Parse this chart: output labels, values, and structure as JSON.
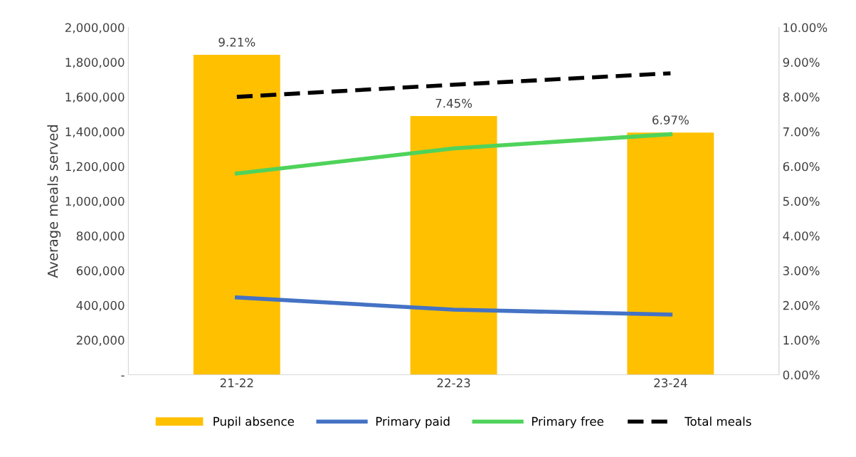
{
  "chart_data": {
    "type": "bar",
    "ylabel": "Average meals served",
    "categories": [
      "21-22",
      "22-23",
      "23-24"
    ],
    "ylim": [
      0,
      2000000
    ],
    "yticks": [
      {
        "value": 0,
        "label": "-"
      },
      {
        "value": 200000,
        "label": "200,000"
      },
      {
        "value": 400000,
        "label": "400,000"
      },
      {
        "value": 600000,
        "label": "600,000"
      },
      {
        "value": 800000,
        "label": "800,000"
      },
      {
        "value": 1000000,
        "label": "1,000,000"
      },
      {
        "value": 1200000,
        "label": "1,200,000"
      },
      {
        "value": 1400000,
        "label": "1,400,000"
      },
      {
        "value": 1600000,
        "label": "1,600,000"
      },
      {
        "value": 1800000,
        "label": "1,800,000"
      },
      {
        "value": 2000000,
        "label": "2,000,000"
      }
    ],
    "y2lim": [
      0,
      10
    ],
    "y2ticks": [
      {
        "value": 0,
        "label": "0.00%"
      },
      {
        "value": 1,
        "label": "1.00%"
      },
      {
        "value": 2,
        "label": "2.00%"
      },
      {
        "value": 3,
        "label": "3.00%"
      },
      {
        "value": 4,
        "label": "4.00%"
      },
      {
        "value": 5,
        "label": "5.00%"
      },
      {
        "value": 6,
        "label": "6.00%"
      },
      {
        "value": 7,
        "label": "7.00%"
      },
      {
        "value": 8,
        "label": "8.00%"
      },
      {
        "value": 9,
        "label": "9.00%"
      },
      {
        "value": 10,
        "label": "10.00%"
      }
    ],
    "series": [
      {
        "name": "Pupil absence",
        "axis": "y2",
        "color": "#ffc000",
        "values": [
          9.21,
          7.45,
          6.97
        ],
        "value_labels": [
          "9.21%",
          "7.45%",
          "6.97%"
        ]
      },
      {
        "name": "Primary paid",
        "type": "line",
        "color": "#4472c4",
        "line_style": "solid",
        "values": [
          445000,
          375000,
          346000
        ]
      },
      {
        "name": "Primary free",
        "type": "line",
        "color": "#4fd35a",
        "line_style": "solid",
        "values": [
          1159000,
          1303000,
          1385000
        ]
      },
      {
        "name": "Total meals",
        "type": "line",
        "color": "#000000",
        "line_style": "dashed",
        "values": [
          1600000,
          1670000,
          1736000
        ]
      }
    ],
    "legend": "bottom",
    "grid": false
  }
}
